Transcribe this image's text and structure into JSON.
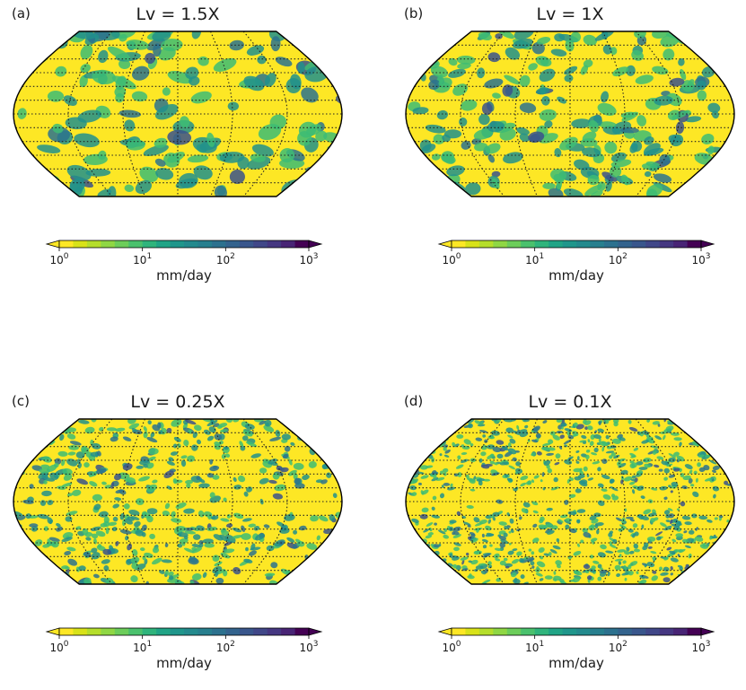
{
  "chart_data": [
    {
      "type": "heatmap",
      "panel_label": "(a)",
      "title": "Lv = 1.5X",
      "colorbar": {
        "ticks": [
          1,
          10,
          100,
          1000
        ],
        "tick_labels": [
          "10^0",
          "10^1",
          "10^2",
          "10^3"
        ],
        "label": "mm/day",
        "scale": "log",
        "extend": "both"
      }
    },
    {
      "type": "heatmap",
      "panel_label": "(b)",
      "title": "Lv = 1X",
      "colorbar": {
        "ticks": [
          1,
          10,
          100,
          1000
        ],
        "tick_labels": [
          "10^0",
          "10^1",
          "10^2",
          "10^3"
        ],
        "label": "mm/day",
        "scale": "log",
        "extend": "both"
      }
    },
    {
      "type": "heatmap",
      "panel_label": "(c)",
      "title": "Lv = 0.25X",
      "colorbar": {
        "ticks": [
          1,
          10,
          100,
          1000
        ],
        "tick_labels": [
          "10^0",
          "10^1",
          "10^2",
          "10^3"
        ],
        "label": "mm/day",
        "scale": "log",
        "extend": "both"
      }
    },
    {
      "type": "heatmap",
      "panel_label": "(d)",
      "title": "Lv = 0.1X",
      "colorbar": {
        "ticks": [
          1,
          10,
          100,
          1000
        ],
        "tick_labels": [
          "10^0",
          "10^1",
          "10^2",
          "10^3"
        ],
        "label": "mm/day",
        "scale": "log",
        "extend": "both"
      }
    }
  ],
  "colormap": [
    "#fde725",
    "#d8e219",
    "#b5de2b",
    "#8fd744",
    "#6ccd5a",
    "#4ac16d",
    "#2fb47c",
    "#20a486",
    "#1f968b",
    "#238a8d",
    "#277f8e",
    "#2c718e",
    "#33638d",
    "#39568c",
    "#404788",
    "#453781",
    "#482475",
    "#440154"
  ],
  "map_colors": {
    "dry": "#fde725",
    "green": "#3dbc74",
    "teal": "#21918c",
    "blue": "#2c728e",
    "indigo": "#3b528b",
    "grid": "#222222",
    "outline": "#000000"
  }
}
